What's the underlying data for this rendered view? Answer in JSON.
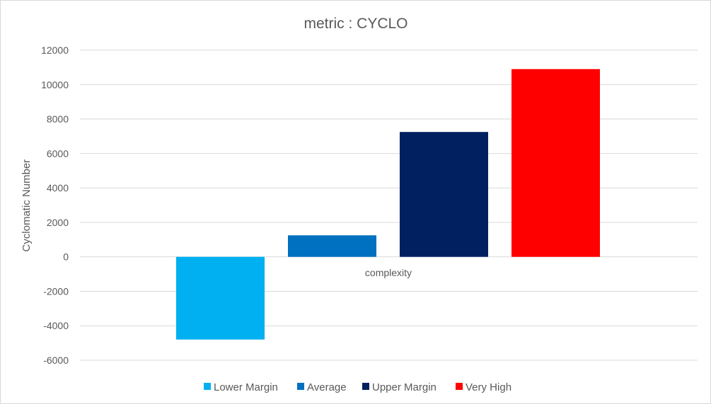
{
  "chart_data": {
    "type": "bar",
    "title": "metric : CYCLO",
    "xlabel": "",
    "ylabel": "Cyclomatic Number",
    "categories": [
      "complexity"
    ],
    "series": [
      {
        "name": "Lower Margin",
        "values": [
          -4800
        ],
        "color": "#00b0f0"
      },
      {
        "name": "Average",
        "values": [
          1250
        ],
        "color": "#0070c0"
      },
      {
        "name": "Upper Margin",
        "values": [
          7250
        ],
        "color": "#002060"
      },
      {
        "name": "Very High",
        "values": [
          10900
        ],
        "color": "#ff0000"
      }
    ],
    "ylim": [
      -6000,
      12000
    ],
    "yticks": [
      12000,
      10000,
      8000,
      6000,
      4000,
      2000,
      0,
      -2000,
      -4000,
      -6000
    ],
    "grid": true,
    "legend_position": "bottom"
  }
}
